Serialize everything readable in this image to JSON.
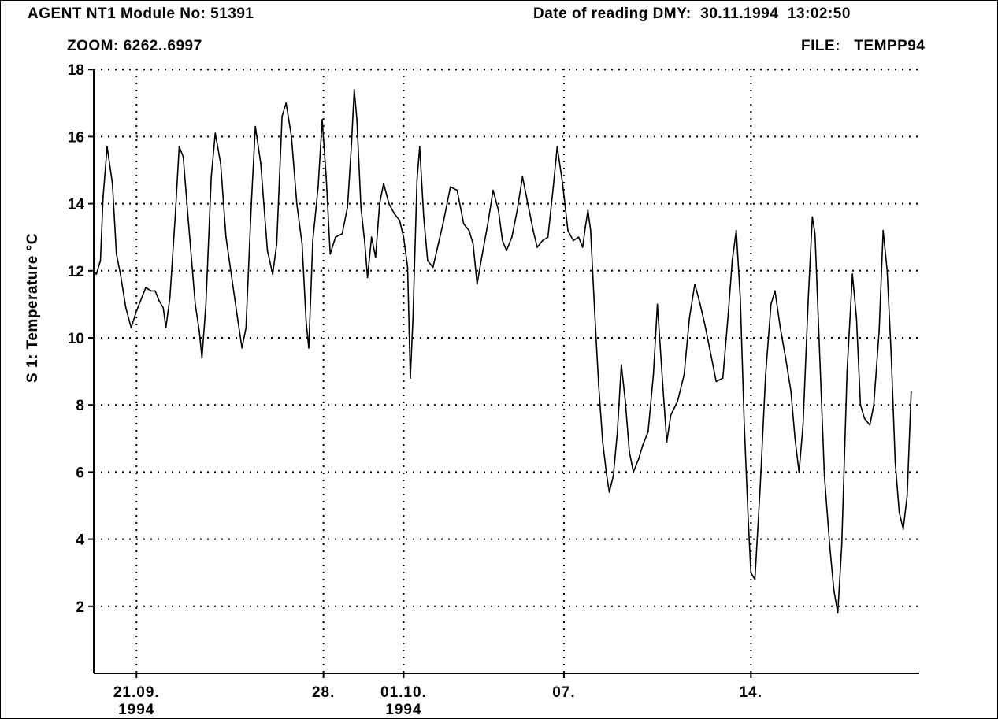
{
  "header": {
    "module": "AGENT NT1 Module No: 51391",
    "date_reading": "Date of reading DMY:  30.11.1994  13:02:50",
    "zoom": "ZOOM: 6262..6997",
    "file": "FILE:   TEMPP94"
  },
  "colors": {
    "line": "#000000",
    "grid": "#000000",
    "background": "#ffffff"
  },
  "chart_data": {
    "type": "line",
    "title": "",
    "ylabel": "S 1: Temperature °C",
    "xlabel": "",
    "ylim": [
      0,
      18
    ],
    "xlim": [
      0,
      30.9
    ],
    "grid": true,
    "grid_style": "dotted",
    "y_ticks": [
      2,
      4,
      6,
      8,
      10,
      12,
      14,
      16,
      18
    ],
    "x_ticks": [
      {
        "day": 1.6,
        "label": "21.09.",
        "label2": "1994"
      },
      {
        "day": 8.6,
        "label": "28.",
        "label2": ""
      },
      {
        "day": 11.6,
        "label": "01.10.",
        "label2": "1994"
      },
      {
        "day": 17.6,
        "label": "07.",
        "label2": ""
      },
      {
        "day": 24.6,
        "label": "14.",
        "label2": ""
      }
    ],
    "x_grid_days": [
      1.6,
      8.6,
      11.6,
      17.6,
      24.6
    ],
    "series": [
      {
        "values": [
          [
            0.0,
            12.0
          ],
          [
            0.1,
            11.9
          ],
          [
            0.25,
            12.3
          ],
          [
            0.35,
            14.2
          ],
          [
            0.5,
            15.7
          ],
          [
            0.7,
            14.6
          ],
          [
            0.85,
            12.5
          ],
          [
            1.0,
            11.9
          ],
          [
            1.2,
            10.9
          ],
          [
            1.4,
            10.3
          ],
          [
            1.6,
            10.8
          ],
          [
            1.8,
            11.2
          ],
          [
            1.95,
            11.5
          ],
          [
            2.15,
            11.4
          ],
          [
            2.3,
            11.4
          ],
          [
            2.45,
            11.1
          ],
          [
            2.6,
            10.9
          ],
          [
            2.7,
            10.3
          ],
          [
            2.85,
            11.2
          ],
          [
            3.05,
            13.6
          ],
          [
            3.2,
            15.7
          ],
          [
            3.35,
            15.4
          ],
          [
            3.55,
            13.4
          ],
          [
            3.8,
            11.0
          ],
          [
            3.95,
            10.2
          ],
          [
            4.05,
            9.4
          ],
          [
            4.2,
            11.0
          ],
          [
            4.4,
            14.8
          ],
          [
            4.55,
            16.1
          ],
          [
            4.75,
            15.2
          ],
          [
            4.95,
            13.0
          ],
          [
            5.2,
            11.6
          ],
          [
            5.4,
            10.5
          ],
          [
            5.55,
            9.7
          ],
          [
            5.7,
            10.3
          ],
          [
            5.9,
            14.0
          ],
          [
            6.05,
            16.3
          ],
          [
            6.25,
            15.2
          ],
          [
            6.5,
            12.6
          ],
          [
            6.7,
            11.9
          ],
          [
            6.85,
            12.8
          ],
          [
            7.05,
            16.6
          ],
          [
            7.2,
            17.0
          ],
          [
            7.4,
            16.0
          ],
          [
            7.6,
            14.0
          ],
          [
            7.8,
            12.8
          ],
          [
            7.95,
            10.5
          ],
          [
            8.05,
            9.7
          ],
          [
            8.2,
            12.9
          ],
          [
            8.4,
            14.5
          ],
          [
            8.55,
            16.5
          ],
          [
            8.7,
            14.8
          ],
          [
            8.85,
            12.5
          ],
          [
            9.05,
            13.0
          ],
          [
            9.3,
            13.1
          ],
          [
            9.5,
            13.9
          ],
          [
            9.65,
            15.8
          ],
          [
            9.75,
            17.4
          ],
          [
            9.85,
            16.5
          ],
          [
            10.0,
            13.9
          ],
          [
            10.15,
            12.8
          ],
          [
            10.25,
            11.8
          ],
          [
            10.4,
            13.0
          ],
          [
            10.55,
            12.4
          ],
          [
            10.7,
            14.0
          ],
          [
            10.85,
            14.6
          ],
          [
            11.05,
            14.0
          ],
          [
            11.25,
            13.7
          ],
          [
            11.45,
            13.5
          ],
          [
            11.6,
            13.0
          ],
          [
            11.75,
            12.1
          ],
          [
            11.85,
            8.8
          ],
          [
            11.95,
            10.6
          ],
          [
            12.1,
            14.7
          ],
          [
            12.2,
            15.7
          ],
          [
            12.35,
            13.6
          ],
          [
            12.5,
            12.3
          ],
          [
            12.7,
            12.1
          ],
          [
            12.9,
            12.8
          ],
          [
            13.1,
            13.5
          ],
          [
            13.35,
            14.5
          ],
          [
            13.6,
            14.4
          ],
          [
            13.85,
            13.4
          ],
          [
            14.05,
            13.2
          ],
          [
            14.2,
            12.8
          ],
          [
            14.35,
            11.6
          ],
          [
            14.5,
            12.3
          ],
          [
            14.75,
            13.4
          ],
          [
            14.95,
            14.4
          ],
          [
            15.15,
            13.8
          ],
          [
            15.3,
            12.9
          ],
          [
            15.45,
            12.6
          ],
          [
            15.65,
            13.0
          ],
          [
            15.85,
            13.8
          ],
          [
            16.05,
            14.8
          ],
          [
            16.25,
            14.0
          ],
          [
            16.45,
            13.2
          ],
          [
            16.6,
            12.7
          ],
          [
            16.8,
            12.9
          ],
          [
            17.0,
            13.0
          ],
          [
            17.2,
            14.5
          ],
          [
            17.35,
            15.7
          ],
          [
            17.55,
            14.6
          ],
          [
            17.75,
            13.2
          ],
          [
            17.95,
            12.9
          ],
          [
            18.15,
            13.0
          ],
          [
            18.3,
            12.7
          ],
          [
            18.4,
            13.3
          ],
          [
            18.5,
            13.8
          ],
          [
            18.6,
            13.2
          ],
          [
            18.75,
            10.8
          ],
          [
            18.9,
            8.6
          ],
          [
            19.05,
            6.9
          ],
          [
            19.2,
            5.9
          ],
          [
            19.3,
            5.4
          ],
          [
            19.45,
            5.9
          ],
          [
            19.6,
            7.2
          ],
          [
            19.75,
            9.2
          ],
          [
            19.9,
            8.1
          ],
          [
            20.05,
            6.6
          ],
          [
            20.2,
            6.0
          ],
          [
            20.4,
            6.4
          ],
          [
            20.55,
            6.8
          ],
          [
            20.75,
            7.2
          ],
          [
            20.95,
            8.9
          ],
          [
            21.1,
            11.0
          ],
          [
            21.3,
            8.6
          ],
          [
            21.45,
            6.9
          ],
          [
            21.6,
            7.7
          ],
          [
            21.85,
            8.1
          ],
          [
            22.1,
            8.9
          ],
          [
            22.3,
            10.6
          ],
          [
            22.5,
            11.6
          ],
          [
            22.7,
            11.0
          ],
          [
            22.9,
            10.3
          ],
          [
            23.1,
            9.5
          ],
          [
            23.3,
            8.7
          ],
          [
            23.55,
            8.8
          ],
          [
            23.75,
            10.7
          ],
          [
            23.9,
            12.3
          ],
          [
            24.05,
            13.2
          ],
          [
            24.2,
            11.2
          ],
          [
            24.35,
            7.4
          ],
          [
            24.5,
            4.6
          ],
          [
            24.6,
            3.0
          ],
          [
            24.75,
            2.8
          ],
          [
            24.95,
            5.6
          ],
          [
            25.15,
            8.9
          ],
          [
            25.35,
            11.0
          ],
          [
            25.5,
            11.4
          ],
          [
            25.7,
            10.3
          ],
          [
            25.9,
            9.4
          ],
          [
            26.1,
            8.4
          ],
          [
            26.25,
            7.0
          ],
          [
            26.4,
            6.0
          ],
          [
            26.55,
            7.4
          ],
          [
            26.75,
            11.2
          ],
          [
            26.9,
            13.6
          ],
          [
            27.0,
            13.1
          ],
          [
            27.15,
            10.0
          ],
          [
            27.35,
            5.9
          ],
          [
            27.55,
            3.8
          ],
          [
            27.7,
            2.5
          ],
          [
            27.85,
            1.8
          ],
          [
            28.0,
            3.8
          ],
          [
            28.2,
            9.0
          ],
          [
            28.4,
            11.9
          ],
          [
            28.55,
            10.6
          ],
          [
            28.7,
            8.0
          ],
          [
            28.85,
            7.6
          ],
          [
            29.05,
            7.4
          ],
          [
            29.2,
            8.0
          ],
          [
            29.4,
            10.2
          ],
          [
            29.55,
            13.2
          ],
          [
            29.7,
            12.0
          ],
          [
            29.85,
            9.5
          ],
          [
            30.0,
            6.3
          ],
          [
            30.15,
            4.8
          ],
          [
            30.3,
            4.3
          ],
          [
            30.45,
            5.3
          ],
          [
            30.6,
            8.4
          ]
        ]
      }
    ]
  }
}
